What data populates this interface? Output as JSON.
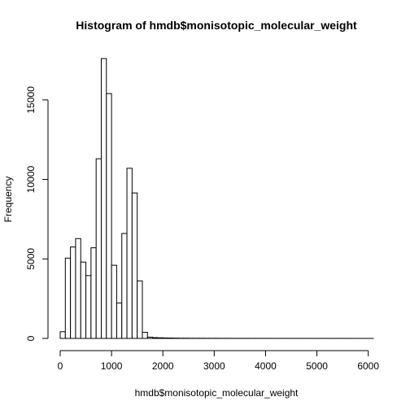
{
  "chart_data": {
    "type": "bar",
    "title": "Histogram of hmdb$monisotopic_molecular_weight",
    "xlabel": "hmdb$monisotopic_molecular_weight",
    "ylabel": "Frequency",
    "bin_width": 100,
    "bin_start": 0,
    "xlim": [
      0,
      6100
    ],
    "ylim": [
      0,
      17600
    ],
    "x_ticks": [
      0,
      1000,
      2000,
      3000,
      4000,
      5000,
      6000
    ],
    "y_ticks": [
      0,
      5000,
      10000,
      15000
    ],
    "values": [
      420,
      5050,
      5750,
      6280,
      4800,
      3950,
      5700,
      11300,
      17600,
      15400,
      4600,
      2230,
      6600,
      10700,
      9150,
      3620,
      380,
      80,
      50,
      40,
      30,
      25,
      20,
      15,
      15,
      10,
      10,
      10,
      8,
      8,
      8,
      6,
      6,
      5,
      5,
      5,
      5,
      4,
      4,
      4,
      4,
      3,
      3,
      3,
      3,
      3,
      3,
      2,
      2,
      2,
      2,
      2,
      2,
      2,
      2,
      2,
      2,
      1,
      1,
      1,
      1
    ]
  }
}
